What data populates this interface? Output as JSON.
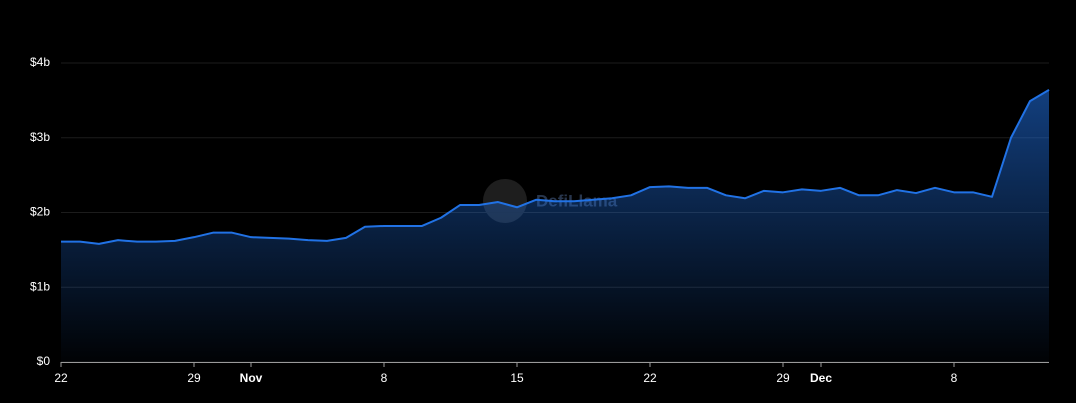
{
  "chart_data": {
    "type": "area",
    "watermark": "DefiLlama",
    "categories": [
      "22",
      null,
      null,
      null,
      null,
      null,
      null,
      "29",
      null,
      null,
      "Nov",
      null,
      null,
      null,
      null,
      null,
      null,
      "8",
      null,
      null,
      null,
      null,
      null,
      null,
      "15",
      null,
      null,
      null,
      null,
      null,
      null,
      "22",
      null,
      null,
      null,
      null,
      null,
      null,
      "29",
      null,
      "Dec",
      null,
      null,
      null,
      null,
      null,
      null,
      "8",
      null,
      null,
      null,
      null,
      null
    ],
    "series": [
      {
        "color": "#2172e5",
        "values": [
          1.61,
          1.61,
          1.58,
          1.63,
          1.61,
          1.61,
          1.62,
          1.67,
          1.73,
          1.73,
          1.67,
          1.66,
          1.65,
          1.63,
          1.62,
          1.66,
          1.81,
          1.82,
          1.82,
          1.82,
          1.93,
          2.1,
          2.1,
          2.14,
          2.07,
          2.17,
          2.15,
          2.15,
          2.17,
          2.19,
          2.23,
          2.34,
          2.35,
          2.33,
          2.33,
          2.23,
          2.19,
          2.29,
          2.27,
          2.31,
          2.29,
          2.33,
          2.23,
          2.23,
          2.3,
          2.26,
          2.33,
          2.27,
          2.27,
          2.21,
          3.0,
          3.49,
          3.64
        ]
      }
    ],
    "ylim": [
      0,
      4
    ],
    "yticks": [
      {
        "value": 0,
        "label": "$0"
      },
      {
        "value": 1,
        "label": "$1b"
      },
      {
        "value": 2,
        "label": "$2b"
      },
      {
        "value": 3,
        "label": "$3b"
      },
      {
        "value": 4,
        "label": "$4b"
      }
    ],
    "grid": true
  }
}
